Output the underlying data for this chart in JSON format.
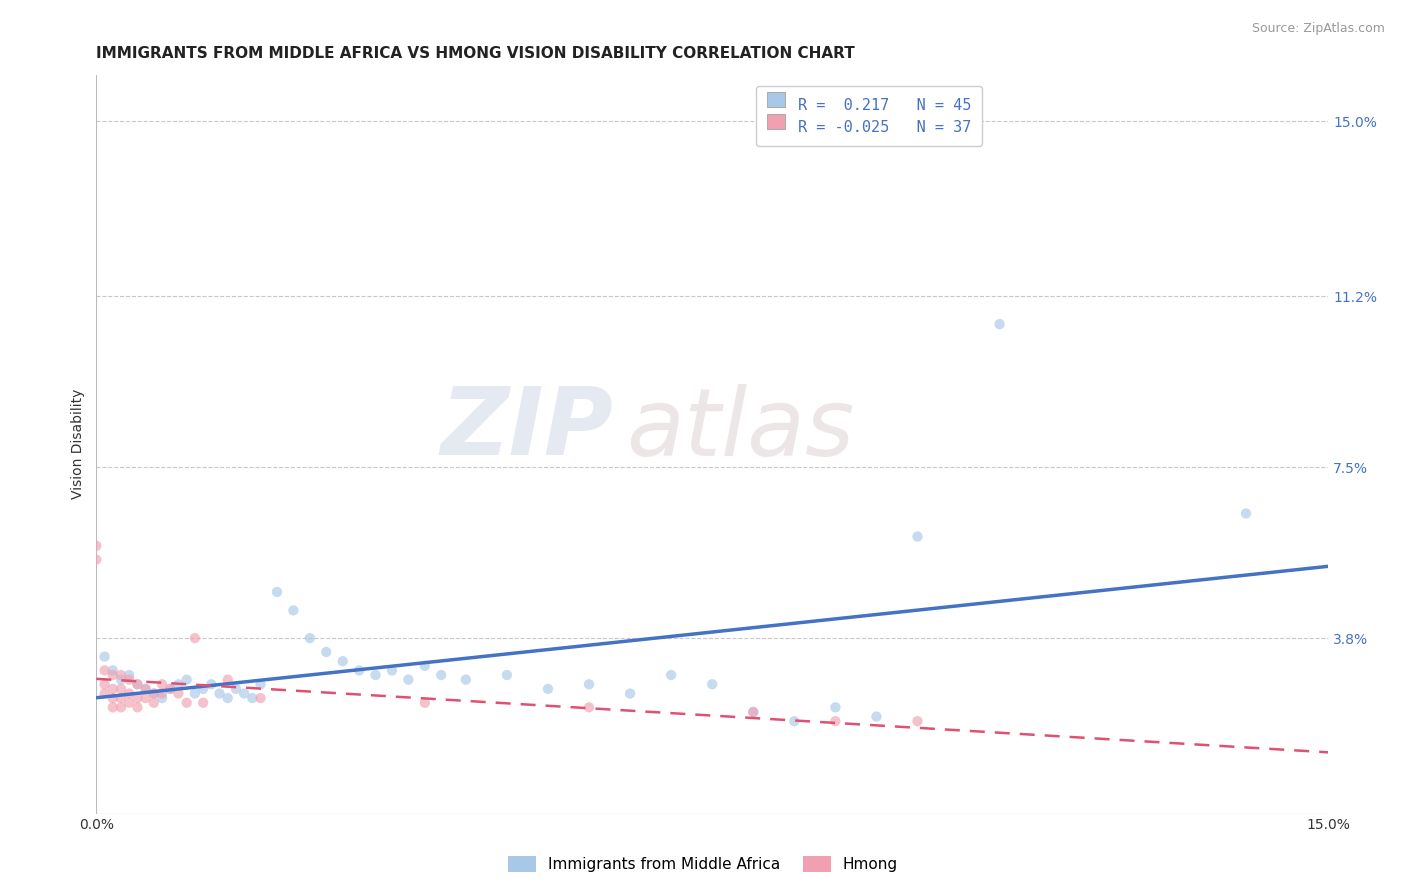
{
  "title": "IMMIGRANTS FROM MIDDLE AFRICA VS HMONG VISION DISABILITY CORRELATION CHART",
  "source": "Source: ZipAtlas.com",
  "ylabel": "Vision Disability",
  "xlim": [
    0.0,
    0.15
  ],
  "ylim": [
    0.0,
    0.16
  ],
  "y_tick_labels_right": [
    "15.0%",
    "11.2%",
    "7.5%",
    "3.8%"
  ],
  "y_tick_values_right": [
    0.15,
    0.112,
    0.075,
    0.038
  ],
  "legend_R_blue": "R =  0.217",
  "legend_N_blue": "N = 45",
  "legend_R_pink": "R = -0.025",
  "legend_N_pink": "N = 37",
  "blue_scatter_color": "#a8c8e8",
  "pink_scatter_color": "#f0a0b0",
  "blue_line_color": "#4472c4",
  "pink_line_color": "#e05070",
  "grid_color": "#c8c8c8",
  "background_color": "#ffffff",
  "watermark_zip": "ZIP",
  "watermark_atlas": "atlas",
  "legend_label_blue": "Immigrants from Middle Africa",
  "legend_label_pink": "Hmong",
  "title_fontsize": 11,
  "axis_label_fontsize": 10,
  "tick_fontsize": 10,
  "legend_fontsize": 11,
  "source_fontsize": 9,
  "scatter_size": 55,
  "scatter_alpha": 0.65,
  "line_width": 2.5,
  "blue_points": [
    [
      0.001,
      0.034
    ],
    [
      0.002,
      0.031
    ],
    [
      0.003,
      0.029
    ],
    [
      0.004,
      0.03
    ],
    [
      0.005,
      0.028
    ],
    [
      0.006,
      0.027
    ],
    [
      0.007,
      0.026
    ],
    [
      0.008,
      0.025
    ],
    [
      0.009,
      0.027
    ],
    [
      0.01,
      0.028
    ],
    [
      0.011,
      0.029
    ],
    [
      0.012,
      0.026
    ],
    [
      0.013,
      0.027
    ],
    [
      0.014,
      0.028
    ],
    [
      0.015,
      0.026
    ],
    [
      0.016,
      0.025
    ],
    [
      0.017,
      0.027
    ],
    [
      0.018,
      0.026
    ],
    [
      0.019,
      0.025
    ],
    [
      0.02,
      0.028
    ],
    [
      0.022,
      0.048
    ],
    [
      0.024,
      0.044
    ],
    [
      0.026,
      0.038
    ],
    [
      0.028,
      0.035
    ],
    [
      0.03,
      0.033
    ],
    [
      0.032,
      0.031
    ],
    [
      0.034,
      0.03
    ],
    [
      0.036,
      0.031
    ],
    [
      0.038,
      0.029
    ],
    [
      0.04,
      0.032
    ],
    [
      0.042,
      0.03
    ],
    [
      0.045,
      0.029
    ],
    [
      0.05,
      0.03
    ],
    [
      0.055,
      0.027
    ],
    [
      0.06,
      0.028
    ],
    [
      0.065,
      0.026
    ],
    [
      0.07,
      0.03
    ],
    [
      0.075,
      0.028
    ],
    [
      0.08,
      0.022
    ],
    [
      0.085,
      0.02
    ],
    [
      0.09,
      0.023
    ],
    [
      0.095,
      0.021
    ],
    [
      0.1,
      0.06
    ],
    [
      0.11,
      0.106
    ],
    [
      0.14,
      0.065
    ]
  ],
  "pink_points": [
    [
      0.0,
      0.058
    ],
    [
      0.0,
      0.055
    ],
    [
      0.001,
      0.031
    ],
    [
      0.001,
      0.028
    ],
    [
      0.001,
      0.026
    ],
    [
      0.002,
      0.03
    ],
    [
      0.002,
      0.027
    ],
    [
      0.002,
      0.025
    ],
    [
      0.002,
      0.023
    ],
    [
      0.003,
      0.03
    ],
    [
      0.003,
      0.027
    ],
    [
      0.003,
      0.025
    ],
    [
      0.003,
      0.023
    ],
    [
      0.004,
      0.029
    ],
    [
      0.004,
      0.026
    ],
    [
      0.004,
      0.024
    ],
    [
      0.005,
      0.028
    ],
    [
      0.005,
      0.025
    ],
    [
      0.005,
      0.023
    ],
    [
      0.006,
      0.027
    ],
    [
      0.006,
      0.025
    ],
    [
      0.007,
      0.026
    ],
    [
      0.007,
      0.024
    ],
    [
      0.008,
      0.028
    ],
    [
      0.008,
      0.026
    ],
    [
      0.009,
      0.027
    ],
    [
      0.01,
      0.026
    ],
    [
      0.011,
      0.024
    ],
    [
      0.012,
      0.038
    ],
    [
      0.013,
      0.024
    ],
    [
      0.016,
      0.029
    ],
    [
      0.02,
      0.025
    ],
    [
      0.04,
      0.024
    ],
    [
      0.06,
      0.023
    ],
    [
      0.08,
      0.022
    ],
    [
      0.09,
      0.02
    ],
    [
      0.1,
      0.02
    ]
  ]
}
